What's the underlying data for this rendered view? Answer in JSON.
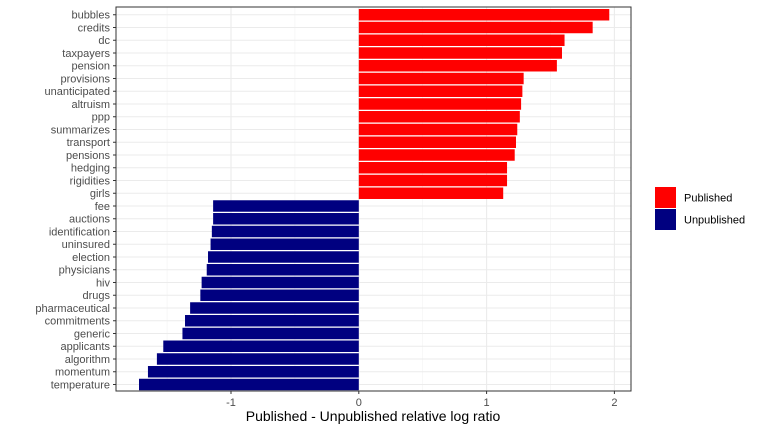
{
  "chart_data": {
    "type": "bar",
    "orientation": "horizontal",
    "title": "",
    "xlabel": "Published - Unpublished relative log ratio",
    "ylabel": "",
    "xlim": [
      -1.9,
      2.13
    ],
    "x_ticks": [
      -1,
      0,
      1,
      2
    ],
    "grid": true,
    "legend_position": "right",
    "colors": {
      "Published": "#ff0000",
      "Unpublished": "#000080"
    },
    "legend": [
      {
        "name": "Published",
        "color": "#ff0000"
      },
      {
        "name": "Unpublished",
        "color": "#000080"
      }
    ],
    "categories": [
      "bubbles",
      "credits",
      "dc",
      "taxpayers",
      "pension",
      "provisions",
      "unanticipated",
      "altruism",
      "ppp",
      "summarizes",
      "transport",
      "pensions",
      "hedging",
      "rigidities",
      "girls",
      "fee",
      "auctions",
      "identification",
      "uninsured",
      "election",
      "physicians",
      "hiv",
      "drugs",
      "pharmaceutical",
      "commitments",
      "generic",
      "applicants",
      "algorithm",
      "momentum",
      "temperature"
    ],
    "values": [
      1.96,
      1.83,
      1.61,
      1.59,
      1.55,
      1.29,
      1.28,
      1.27,
      1.26,
      1.24,
      1.23,
      1.22,
      1.16,
      1.16,
      1.13,
      -1.14,
      -1.14,
      -1.15,
      -1.16,
      -1.18,
      -1.19,
      -1.23,
      -1.24,
      -1.32,
      -1.36,
      -1.38,
      -1.53,
      -1.58,
      -1.65,
      -1.72
    ],
    "groups": [
      "Published",
      "Published",
      "Published",
      "Published",
      "Published",
      "Published",
      "Published",
      "Published",
      "Published",
      "Published",
      "Published",
      "Published",
      "Published",
      "Published",
      "Published",
      "Unpublished",
      "Unpublished",
      "Unpublished",
      "Unpublished",
      "Unpublished",
      "Unpublished",
      "Unpublished",
      "Unpublished",
      "Unpublished",
      "Unpublished",
      "Unpublished",
      "Unpublished",
      "Unpublished",
      "Unpublished",
      "Unpublished"
    ]
  }
}
